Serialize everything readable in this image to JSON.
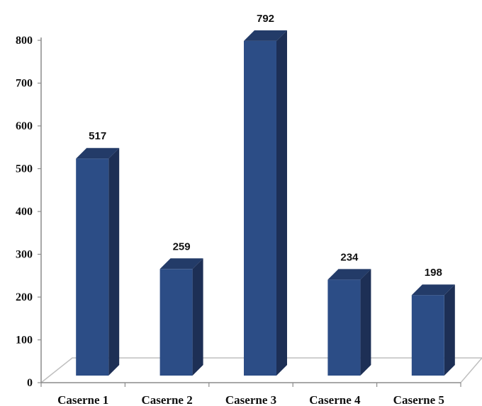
{
  "colors": {
    "bar_front": "#2c4d86",
    "bar_side": "#1d2f55",
    "bar_top": "#233b68",
    "floor_line": "#bfbfbf",
    "axis": "#8c8c8c"
  },
  "chart_data": {
    "type": "bar",
    "three_d": true,
    "categories": [
      "Caserne 1",
      "Caserne 2",
      "Caserne 3",
      "Caserne 4",
      "Caserne 5"
    ],
    "values": [
      517,
      259,
      792,
      234,
      198
    ],
    "data_labels": [
      "517",
      "259",
      "792",
      "234",
      "198"
    ],
    "ylim": [
      0,
      800
    ],
    "yticks": [
      "0",
      "100",
      "200",
      "300",
      "400",
      "500",
      "600",
      "700",
      "800"
    ],
    "title": "",
    "xlabel": "",
    "ylabel": "",
    "grid": false,
    "legend": "none"
  }
}
